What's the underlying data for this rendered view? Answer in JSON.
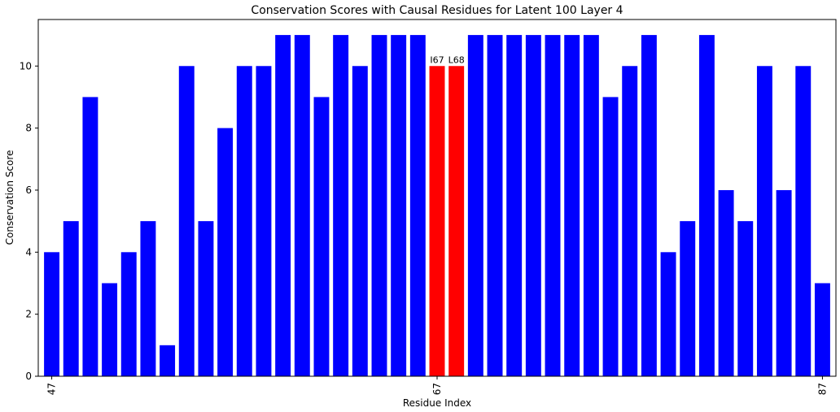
{
  "chart_data": {
    "type": "bar",
    "title": "Conservation Scores with Causal Residues for Latent 100 Layer 4",
    "xlabel": "Residue Index",
    "ylabel": "Conservation Score",
    "x": [
      47,
      48,
      49,
      50,
      51,
      52,
      53,
      54,
      55,
      56,
      57,
      58,
      59,
      60,
      61,
      62,
      63,
      64,
      65,
      66,
      67,
      68,
      69,
      70,
      71,
      72,
      73,
      74,
      75,
      76,
      77,
      78,
      79,
      80,
      81,
      82,
      83,
      84,
      85,
      86,
      87
    ],
    "values": [
      4,
      5,
      9,
      3,
      4,
      5,
      1,
      10,
      5,
      8,
      10,
      10,
      11,
      11,
      9,
      11,
      10,
      11,
      11,
      11,
      10,
      10,
      11,
      11,
      11,
      11,
      11,
      11,
      11,
      9,
      10,
      11,
      4,
      5,
      11,
      6,
      5,
      10,
      6,
      10,
      3
    ],
    "x_ticks": [
      "47",
      "67",
      "87"
    ],
    "y_ticks": [
      "0",
      "2",
      "4",
      "6",
      "8",
      "10"
    ],
    "ylim": [
      0,
      11.5
    ],
    "colors": {
      "default": "#0000ff",
      "highlight": "#ff0000"
    },
    "highlighted": [
      {
        "x": 67,
        "label": "I67"
      },
      {
        "x": 68,
        "label": "L68"
      }
    ],
    "grid": false,
    "legend": "none"
  }
}
